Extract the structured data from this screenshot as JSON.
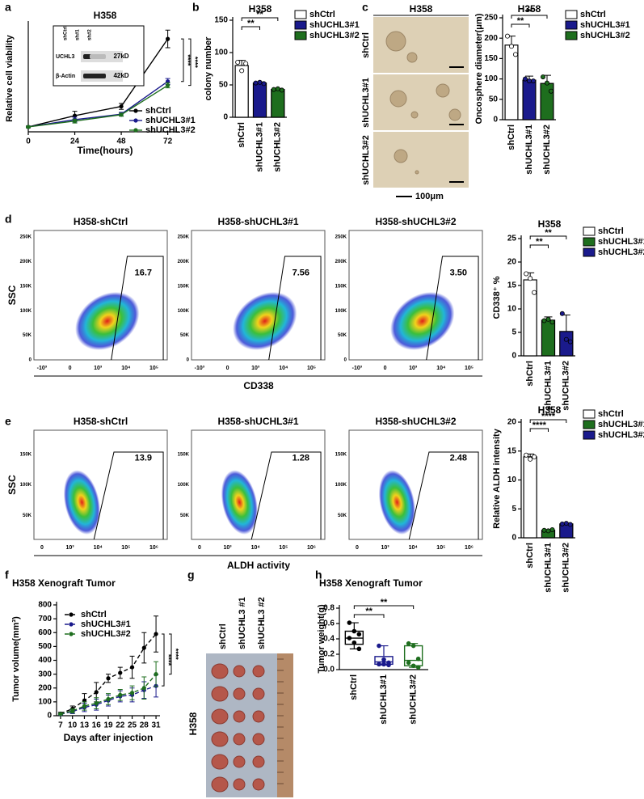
{
  "figure": {
    "panels": [
      "a",
      "b",
      "c",
      "d",
      "e",
      "f",
      "g",
      "h"
    ],
    "blot": {
      "lanes": [
        "shCtrl",
        "sh#1",
        "sh#2"
      ],
      "rows": [
        {
          "name": "UCHL3",
          "size": "27kD"
        },
        {
          "name": "β-Actin",
          "size": "42kD"
        }
      ]
    },
    "micro": {
      "title": "H358",
      "rows": [
        "shCtrl",
        "shUCHL3#1",
        "shUCHL3#2"
      ],
      "scale": "100μm"
    },
    "flow_d": {
      "titles": [
        "H358-shCtrl",
        "H358-shUCHL3#1",
        "H358-shUCHL3#2"
      ],
      "gates": [
        "16.7",
        "7.56",
        "3.50"
      ],
      "ylabel": "SSC",
      "xlabel": "CD338",
      "yticks": [
        "0",
        "50K",
        "100K",
        "150K",
        "200K",
        "250K"
      ],
      "xticks": [
        "-10³",
        "0",
        "10³",
        "10⁴",
        "10⁵"
      ]
    },
    "flow_e": {
      "titles": [
        "H358-shCtrl",
        "H358-shUCHL3#1",
        "H358-shUCHL3#2"
      ],
      "gates": [
        "13.9",
        "1.28",
        "2.48"
      ],
      "ylabel": "SSC",
      "xlabel": "ALDH activity",
      "yticks": [
        "50K",
        "100K",
        "150K"
      ],
      "xticks": [
        "0",
        "10³",
        "10⁴",
        "10⁵",
        "10⁶"
      ]
    },
    "tumor": {
      "lanes": [
        "shCtrl",
        "shUCHL3 #1",
        "shUCHL3 #2"
      ],
      "cell_line": "H358"
    }
  },
  "chart_data": [
    {
      "type": "line",
      "title": "H358",
      "xlabel": "Time(hours)",
      "ylabel": "Relative cell viability",
      "x": [
        0,
        24,
        48,
        72
      ],
      "xlim": [
        0,
        78
      ],
      "xticks": [
        0,
        24,
        48,
        72
      ],
      "ylim": [
        0,
        22
      ],
      "line_style": "solid",
      "legend": "lower right",
      "series": [
        {
          "name": "shCtrl",
          "color": "#000000",
          "values": [
            1,
            3.3,
            5.2,
            19
          ],
          "errors": [
            0.2,
            0.9,
            0.6,
            1.8
          ]
        },
        {
          "name": "shUCHL3#1",
          "color": "#1a1a8c",
          "values": [
            1,
            2.5,
            3.6,
            10.3
          ],
          "errors": [
            0.1,
            0.5,
            0.4,
            0.6
          ]
        },
        {
          "name": "shUCHL3#2",
          "color": "#1e6e1e",
          "values": [
            1,
            2.2,
            3.5,
            9.5
          ],
          "errors": [
            0.1,
            0.4,
            0.3,
            0.5
          ]
        }
      ],
      "annotations": [
        "****",
        "****"
      ]
    },
    {
      "type": "bar",
      "title": "H358",
      "ylabel": "colony number",
      "categories": [
        "shCtrl",
        "shUCHL3#1",
        "shUCHL3#2"
      ],
      "values": [
        80,
        53,
        43
      ],
      "errors": [
        8,
        1.5,
        1
      ],
      "points": [
        [
          85,
          72,
          83
        ],
        [
          53,
          54,
          52
        ],
        [
          43,
          44,
          42
        ]
      ],
      "colors": [
        "#ffffff",
        "#1a1a8c",
        "#1e6e1e"
      ],
      "ylim": [
        0,
        150
      ],
      "yticks": [
        0,
        50,
        100,
        150
      ],
      "annotations": [
        "**",
        "**"
      ],
      "legend": "right"
    },
    {
      "type": "bar",
      "title": "H358",
      "ylabel": "Oncosphere diameter(μm)",
      "categories": [
        "shCtrl",
        "shUCHL3#1",
        "shUCHL3#2"
      ],
      "values": [
        183,
        97,
        89
      ],
      "errors": [
        22,
        10,
        20
      ],
      "points": [
        [
          205,
          180,
          160
        ],
        [
          100,
          95,
          95
        ],
        [
          105,
          90,
          70
        ]
      ],
      "colors": [
        "#ffffff",
        "#1a1a8c",
        "#1e6e1e"
      ],
      "ylim": [
        0,
        250
      ],
      "yticks": [
        0,
        50,
        100,
        150,
        200,
        250
      ],
      "annotations": [
        "**",
        "**"
      ],
      "legend": "right"
    },
    {
      "type": "bar",
      "title": "H358",
      "ylabel": "CD338⁺ %",
      "categories": [
        "shCtrl",
        "shUCHL3#1",
        "shUCHL3#2"
      ],
      "values": [
        16.2,
        7.6,
        5.2
      ],
      "errors": [
        1.5,
        0.7,
        3.5
      ],
      "points": [
        [
          17.5,
          16.5,
          13.5
        ],
        [
          7.5,
          7.8,
          7.2
        ],
        [
          9,
          3.5,
          3
        ]
      ],
      "colors": [
        "#ffffff",
        "#1e6e1e",
        "#1a1a8c"
      ],
      "ylim": [
        0,
        25
      ],
      "yticks": [
        0,
        5,
        10,
        15,
        20,
        25
      ],
      "annotations": [
        "**",
        "**"
      ],
      "legend": "right"
    },
    {
      "type": "bar",
      "title": "H358",
      "ylabel": "Relative ALDH intensity",
      "categories": [
        "shCtrl",
        "shUCHL3#1",
        "shUCHL3#2"
      ],
      "values": [
        14,
        1.3,
        2.4
      ],
      "errors": [
        0.5,
        0.1,
        0.1
      ],
      "points": [
        [
          14.3,
          13.6,
          14
        ],
        [
          1.3,
          1.2,
          1.4
        ],
        [
          2.4,
          2.5,
          2.3
        ]
      ],
      "colors": [
        "#ffffff",
        "#1e6e1e",
        "#1a1a8c"
      ],
      "ylim": [
        0,
        20
      ],
      "yticks": [
        0,
        5,
        10,
        15,
        20
      ],
      "annotations": [
        "****",
        "****"
      ],
      "legend": "right"
    },
    {
      "type": "line",
      "title": "H358 Xenograft Tumor",
      "xlabel": "Days after injection",
      "ylabel": "Tumor volume(mm³)",
      "x": [
        7,
        10,
        13,
        16,
        19,
        22,
        25,
        28,
        31
      ],
      "xlim": [
        6,
        32
      ],
      "xticks": [
        7,
        10,
        13,
        16,
        19,
        22,
        25,
        28,
        31
      ],
      "ylim": [
        0,
        800
      ],
      "yticks": [
        0,
        100,
        200,
        300,
        400,
        500,
        600,
        700,
        800
      ],
      "line_style": "dashed",
      "legend": "upper left",
      "series": [
        {
          "name": "shCtrl",
          "color": "#000000",
          "values": [
            15,
            50,
            110,
            170,
            270,
            310,
            350,
            490,
            590
          ],
          "errors": [
            10,
            20,
            50,
            70,
            30,
            40,
            80,
            110,
            130
          ]
        },
        {
          "name": "shUCHL3#1",
          "color": "#1a1a8c",
          "values": [
            10,
            30,
            60,
            80,
            110,
            140,
            150,
            185,
            215
          ],
          "errors": [
            5,
            15,
            30,
            40,
            40,
            40,
            50,
            60,
            80
          ]
        },
        {
          "name": "shUCHL3#2",
          "color": "#1e6e1e",
          "values": [
            12,
            35,
            70,
            90,
            120,
            150,
            165,
            200,
            300
          ],
          "errors": [
            5,
            15,
            30,
            40,
            40,
            40,
            50,
            80,
            90
          ]
        }
      ],
      "annotations": [
        "****",
        "****"
      ]
    },
    {
      "type": "box",
      "title": "H358 Xenograft Tumor",
      "ylabel": "Tumor weight(g)",
      "categories": [
        "shCtrl",
        "shUCHL3#1",
        "shUCHL3#2"
      ],
      "colors": [
        "#000000",
        "#1a1a8c",
        "#1e6e1e"
      ],
      "boxes": [
        {
          "min": 0.27,
          "q1": 0.33,
          "median": 0.41,
          "q3": 0.5,
          "max": 0.61
        },
        {
          "min": 0.06,
          "q1": 0.07,
          "median": 0.1,
          "q3": 0.17,
          "max": 0.31
        },
        {
          "min": 0.03,
          "q1": 0.05,
          "median": 0.12,
          "q3": 0.31,
          "max": 0.34
        }
      ],
      "points": [
        [
          0.61,
          0.5,
          0.46,
          0.41,
          0.35,
          0.27
        ],
        [
          0.31,
          0.13,
          0.09,
          0.07,
          0.07,
          0.06
        ],
        [
          0.34,
          0.31,
          0.14,
          0.09,
          0.05,
          0.03
        ]
      ],
      "ylim": [
        0,
        0.8
      ],
      "yticks": [
        {
          "value": 0,
          "label": "0.0"
        },
        {
          "value": 0.2,
          "label": "0.2"
        },
        {
          "value": 0.4,
          "label": "0.4"
        },
        {
          "value": 0.6,
          "label": "0.6"
        },
        {
          "value": 0.8,
          "label": "0.8"
        }
      ],
      "annotations": [
        "**",
        "**"
      ]
    }
  ]
}
